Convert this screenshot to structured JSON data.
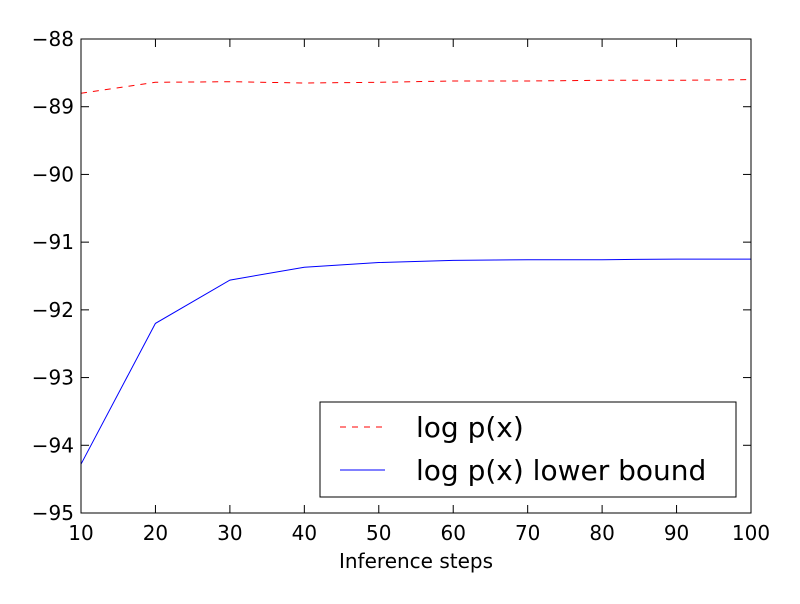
{
  "chart_data": {
    "type": "line",
    "title": "",
    "xlabel": "Inference steps",
    "ylabel": "",
    "xlim": [
      10,
      100
    ],
    "ylim": [
      -95,
      -88
    ],
    "x_ticks": [
      10,
      20,
      30,
      40,
      50,
      60,
      70,
      80,
      90,
      100
    ],
    "y_ticks": [
      -88,
      -89,
      -90,
      -91,
      -92,
      -93,
      -94,
      -95
    ],
    "x_tick_labels": [
      "10",
      "20",
      "30",
      "40",
      "50",
      "60",
      "70",
      "80",
      "90",
      "100"
    ],
    "y_tick_labels": [
      "−88",
      "−89",
      "−90",
      "−91",
      "−92",
      "−93",
      "−94",
      "−95"
    ],
    "grid": false,
    "legend_position": "lower-right",
    "x": [
      10,
      20,
      30,
      40,
      50,
      60,
      70,
      80,
      90,
      100
    ],
    "series": [
      {
        "name": "log p(x)",
        "color": "#ff0000",
        "line_style": "dashed",
        "values": [
          -88.8,
          -88.64,
          -88.63,
          -88.65,
          -88.64,
          -88.62,
          -88.62,
          -88.61,
          -88.61,
          -88.6
        ]
      },
      {
        "name": "log p(x) lower bound",
        "color": "#0000ff",
        "line_style": "solid",
        "values": [
          -94.28,
          -92.2,
          -91.56,
          -91.37,
          -91.3,
          -91.27,
          -91.26,
          -91.26,
          -91.25,
          -91.25
        ]
      }
    ]
  }
}
